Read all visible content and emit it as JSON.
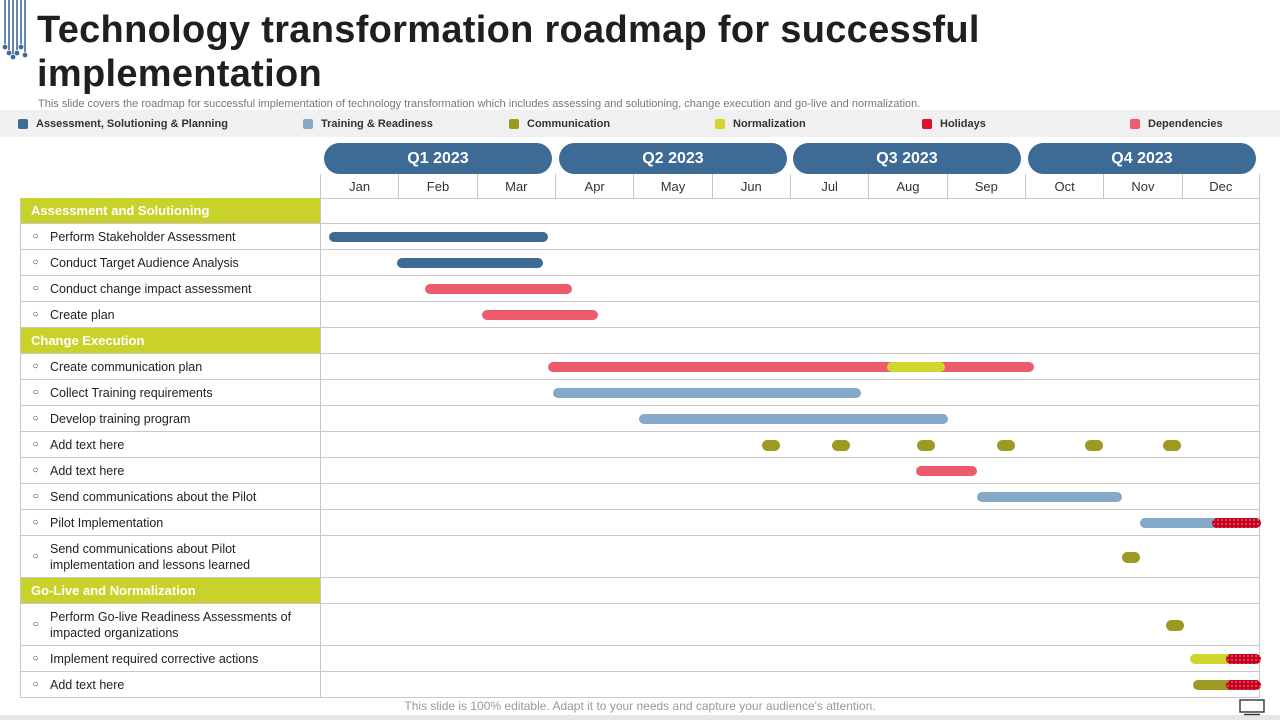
{
  "title": "Technology transformation roadmap for successful implementation",
  "subtitle": "This slide covers the roadmap for successful implementation of technology transformation which includes assessing and solutioning, change execution and go-live and normalization.",
  "legend": [
    {
      "label": "Assessment, Solutioning & Planning",
      "color": "#3d6b96"
    },
    {
      "label": "Training & Readiness",
      "color": "#85a9c9"
    },
    {
      "label": "Communication",
      "color": "#9c9a22"
    },
    {
      "label": "Normalization",
      "color": "#cfd62d"
    },
    {
      "label": "Holidays",
      "color": "#d9102e"
    },
    {
      "label": "Dependencies",
      "color": "#ef5b6e"
    }
  ],
  "quarters": [
    "Q1 2023",
    "Q2 2023",
    "Q3 2023",
    "Q4 2023"
  ],
  "months": [
    "Jan",
    "Feb",
    "Mar",
    "Apr",
    "May",
    "Jun",
    "Jul",
    "Aug",
    "Sep",
    "Oct",
    "Nov",
    "Dec"
  ],
  "sections": [
    {
      "title": "Assessment and Solutioning",
      "tasks": [
        {
          "label": "Perform Stakeholder Assessment",
          "bars": [
            {
              "kind": "bar",
              "start": 0.1,
              "end": 2.9,
              "color": "#3d6b96"
            }
          ]
        },
        {
          "label": "Conduct Target Audience Analysis",
          "bars": [
            {
              "kind": "bar",
              "start": 0.97,
              "end": 2.84,
              "color": "#3d6b96"
            }
          ]
        },
        {
          "label": "Conduct change impact assessment",
          "bars": [
            {
              "kind": "bar",
              "start": 1.33,
              "end": 3.2,
              "color": "#ef5b6e"
            }
          ]
        },
        {
          "label": "Create plan",
          "bars": [
            {
              "kind": "bar",
              "start": 2.05,
              "end": 3.54,
              "color": "#ef5b6e"
            }
          ]
        }
      ]
    },
    {
      "title": "Change Execution",
      "tasks": [
        {
          "label": "Create communication plan",
          "bars": [
            {
              "kind": "bar",
              "start": 2.9,
              "end": 9.1,
              "color": "#ef5b6e"
            },
            {
              "kind": "bar",
              "start": 7.22,
              "end": 7.97,
              "color": "#cfd62d"
            }
          ]
        },
        {
          "label": "Collect Training  requirements",
          "bars": [
            {
              "kind": "bar",
              "start": 2.96,
              "end": 6.9,
              "color": "#85a9c9"
            }
          ]
        },
        {
          "label": "Develop training program",
          "bars": [
            {
              "kind": "bar",
              "start": 4.06,
              "end": 8.0,
              "color": "#85a9c9"
            }
          ]
        },
        {
          "label": "Add text here",
          "bars": [
            {
              "kind": "dot",
              "start": 5.75,
              "color": "#9c9a22"
            },
            {
              "kind": "dot",
              "start": 6.64,
              "color": "#9c9a22"
            },
            {
              "kind": "dot",
              "start": 7.72,
              "color": "#9c9a22"
            },
            {
              "kind": "dot",
              "start": 8.74,
              "color": "#9c9a22"
            },
            {
              "kind": "dot",
              "start": 9.87,
              "color": "#9c9a22"
            },
            {
              "kind": "dot",
              "start": 10.87,
              "color": "#9c9a22"
            }
          ]
        },
        {
          "label": "Add text here",
          "bars": [
            {
              "kind": "bar",
              "start": 7.6,
              "end": 8.38,
              "color": "#ef5b6e"
            }
          ]
        },
        {
          "label": "Send communications about the Pilot",
          "bars": [
            {
              "kind": "bar",
              "start": 8.38,
              "end": 10.22,
              "color": "#85a9c9"
            }
          ]
        },
        {
          "label": "Pilot Implementation",
          "bars": [
            {
              "kind": "bar",
              "start": 10.46,
              "end": 12.0,
              "color": "#85a9c9"
            },
            {
              "kind": "hatch",
              "start": 11.37,
              "end": 12.0,
              "color": "#c4001c"
            }
          ]
        },
        {
          "label": "Send communications about Pilot implementation  and lessons learned",
          "tall": true,
          "bars": [
            {
              "kind": "dot",
              "start": 10.34,
              "color": "#9c9a22"
            }
          ]
        }
      ]
    },
    {
      "title": "Go-Live and Normalization",
      "tasks": [
        {
          "label": "Perform Go-live Readiness Assessments of impacted organizations",
          "tall": true,
          "bars": [
            {
              "kind": "dot",
              "start": 10.9,
              "color": "#9c9a22"
            }
          ]
        },
        {
          "label": "Implement required corrective actions",
          "bars": [
            {
              "kind": "bar",
              "start": 11.1,
              "end": 12.0,
              "color": "#cfd62d"
            },
            {
              "kind": "hatch",
              "start": 11.55,
              "end": 12.0,
              "color": "#c4001c"
            }
          ]
        },
        {
          "label": "Add text here",
          "bars": [
            {
              "kind": "bar",
              "start": 11.13,
              "end": 12.0,
              "color": "#9c9a22"
            },
            {
              "kind": "hatch",
              "start": 11.55,
              "end": 12.0,
              "color": "#c4001c"
            }
          ]
        }
      ]
    }
  ],
  "footer": "This slide is 100% editable. Adapt it to your needs and capture your audience's attention."
}
